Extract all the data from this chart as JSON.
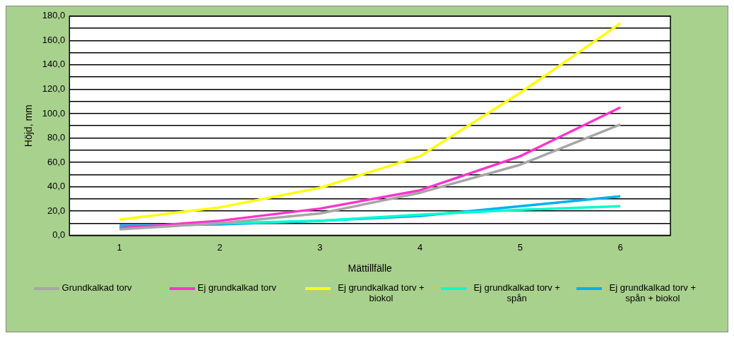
{
  "chart_data": {
    "type": "line",
    "xlabel": "Mättillfälle",
    "ylabel": "Höjd, mm",
    "categories": [
      "1",
      "2",
      "3",
      "4",
      "5",
      "6"
    ],
    "ylim": [
      0,
      180
    ],
    "yticks": [
      {
        "value": 0,
        "label": "0,0"
      },
      {
        "value": 10,
        "label": null
      },
      {
        "value": 20,
        "label": "20,0"
      },
      {
        "value": 30,
        "label": null
      },
      {
        "value": 40,
        "label": "40,0"
      },
      {
        "value": 50,
        "label": null
      },
      {
        "value": 60,
        "label": "60,0"
      },
      {
        "value": 70,
        "label": null
      },
      {
        "value": 80,
        "label": "80,0"
      },
      {
        "value": 90,
        "label": null
      },
      {
        "value": 100,
        "label": "100,0"
      },
      {
        "value": 110,
        "label": null
      },
      {
        "value": 120,
        "label": "120,0"
      },
      {
        "value": 130,
        "label": null
      },
      {
        "value": 140,
        "label": "140,0"
      },
      {
        "value": 150,
        "label": null
      },
      {
        "value": 160,
        "label": "160,0"
      },
      {
        "value": 170,
        "label": null
      },
      {
        "value": 180,
        "label": "180,0"
      }
    ],
    "grid": "y",
    "legend": "bottom",
    "marker": "none",
    "line_style": "solid",
    "series": [
      {
        "name": "Grundkalkad torv",
        "color": "#a6a6a6",
        "values": [
          5,
          10,
          18,
          35,
          58,
          91
        ]
      },
      {
        "name": "Ej grundkalkad torv",
        "color": "#ff33cc",
        "values": [
          6,
          12,
          22,
          37,
          65,
          105
        ]
      },
      {
        "name": "Ej grundkalkad torv + biokol",
        "color": "#ffff00",
        "values": [
          13,
          23,
          39,
          65,
          117,
          174
        ]
      },
      {
        "name": "Ej grundkalkad torv + spån",
        "color": "#00ffcc",
        "values": [
          6,
          10,
          12,
          17,
          21,
          24
        ]
      },
      {
        "name": "Ej grundkalkad torv + spån + biokol",
        "color": "#00b0f0",
        "values": [
          8,
          9,
          12,
          16,
          24,
          32
        ]
      }
    ]
  }
}
